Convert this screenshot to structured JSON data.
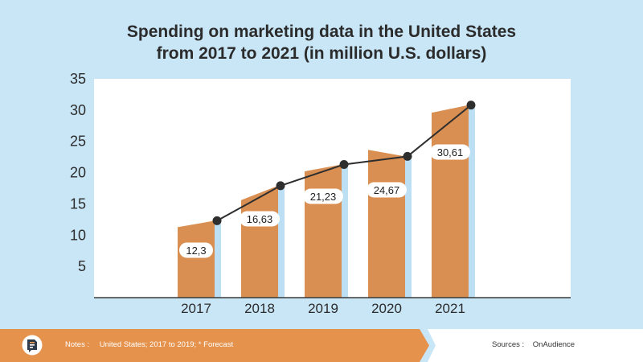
{
  "title_lines": [
    "Spending on marketing data in the United States",
    "from 2017 to 2021 (in million U.S. dollars)"
  ],
  "chart_data": {
    "type": "bar",
    "title": "Spending on marketing data in the United States from 2017 to 2021 (in million U.S. dollars)",
    "xlabel": "",
    "ylabel": "",
    "categories": [
      "2017",
      "2018",
      "2019",
      "2020",
      "2021"
    ],
    "values": [
      12.3,
      16.63,
      21.23,
      24.67,
      30.61
    ],
    "value_labels": [
      "12,3",
      "16,63",
      "21,23",
      "24,67",
      "30,61"
    ],
    "line_points": [
      12.3,
      17.9,
      21.3,
      22.6,
      30.8
    ],
    "ylim": [
      0,
      35
    ],
    "yticks": [
      5,
      10,
      15,
      20,
      25,
      30,
      35
    ],
    "grid": false,
    "colors": {
      "bar": "#d98f52",
      "bar_shadow": "#bcdff3",
      "line": "#2e2e2e",
      "plot_bg": "#ffffff",
      "background": "#c9e6f7"
    }
  },
  "footer": {
    "notes_label": "Notes :",
    "notes_text": "United States; 2017 to 2019; * Forecast",
    "sources_label": "Sources :",
    "sources_text": "OnAudience",
    "bar_color": "#e5924d",
    "logo_icon": "document-chat-logo-icon"
  }
}
